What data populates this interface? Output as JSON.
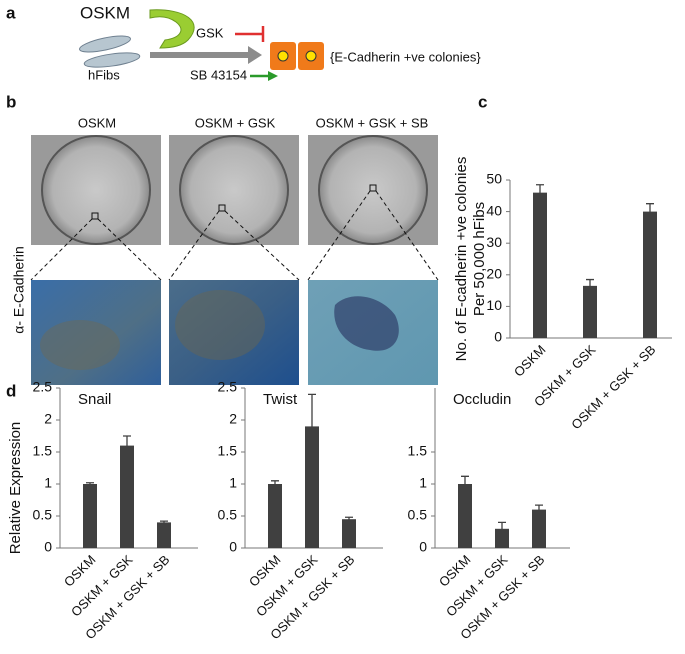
{
  "panels": [
    "a",
    "b",
    "c",
    "d"
  ],
  "schematic": {
    "factor": "OSKM",
    "inhibitor": "GSK",
    "cells": "hFibs",
    "activator": "SB 43154",
    "result": "{E-Cadherin +ve colonies}"
  },
  "images": {
    "columns": [
      "OSKM",
      "OSKM + GSK",
      "OSKM + GSK + SB"
    ],
    "row_label": "α- E-Cadherin"
  },
  "chart_data": [
    {
      "type": "bar",
      "ylabel": [
        "No. of E-cadherin +ve colonies",
        "Per 50,000 hFibs"
      ],
      "categories": [
        "OSKM",
        "OSKM + GSK",
        "OSKM + GSK + SB"
      ],
      "values": [
        46,
        16.5,
        40
      ],
      "errors": [
        2.5,
        2,
        2.5
      ],
      "color": "#404040",
      "ylim": [
        0,
        50
      ],
      "yticks": [
        0,
        10,
        20,
        30,
        40,
        50
      ]
    },
    {
      "type": "bar",
      "title": "Snail",
      "ylabel": "Relative Expression",
      "categories": [
        "OSKM",
        "OSKM + GSK",
        "OSKM + GSK + SB"
      ],
      "values": [
        1,
        1.6,
        0.4
      ],
      "errors": [
        0.02,
        0.15,
        0.02
      ],
      "color": "#404040",
      "ylim": [
        0,
        2.5
      ],
      "yticks": [
        0,
        0.5,
        1,
        1.5,
        2,
        2.5
      ]
    },
    {
      "type": "bar",
      "title": "Twist",
      "categories": [
        "OSKM",
        "OSKM + GSK",
        "OSKM + GSK + SB"
      ],
      "values": [
        1,
        1.9,
        0.45
      ],
      "errors": [
        0.05,
        0.5,
        0.03
      ],
      "color": "#404040",
      "ylim": [
        0,
        2.5
      ],
      "yticks": [
        0,
        0.5,
        1,
        1.5,
        2,
        2.5
      ]
    },
    {
      "type": "bar",
      "title": "Occludin",
      "categories": [
        "OSKM",
        "OSKM + GSK",
        "OSKM + GSK + SB"
      ],
      "values": [
        1,
        0.3,
        0.6
      ],
      "errors": [
        0.12,
        0.1,
        0.07
      ],
      "color": "#404040",
      "ylim": [
        0,
        2.5
      ],
      "yticks": [
        0,
        0.5,
        1,
        1.5
      ]
    }
  ]
}
